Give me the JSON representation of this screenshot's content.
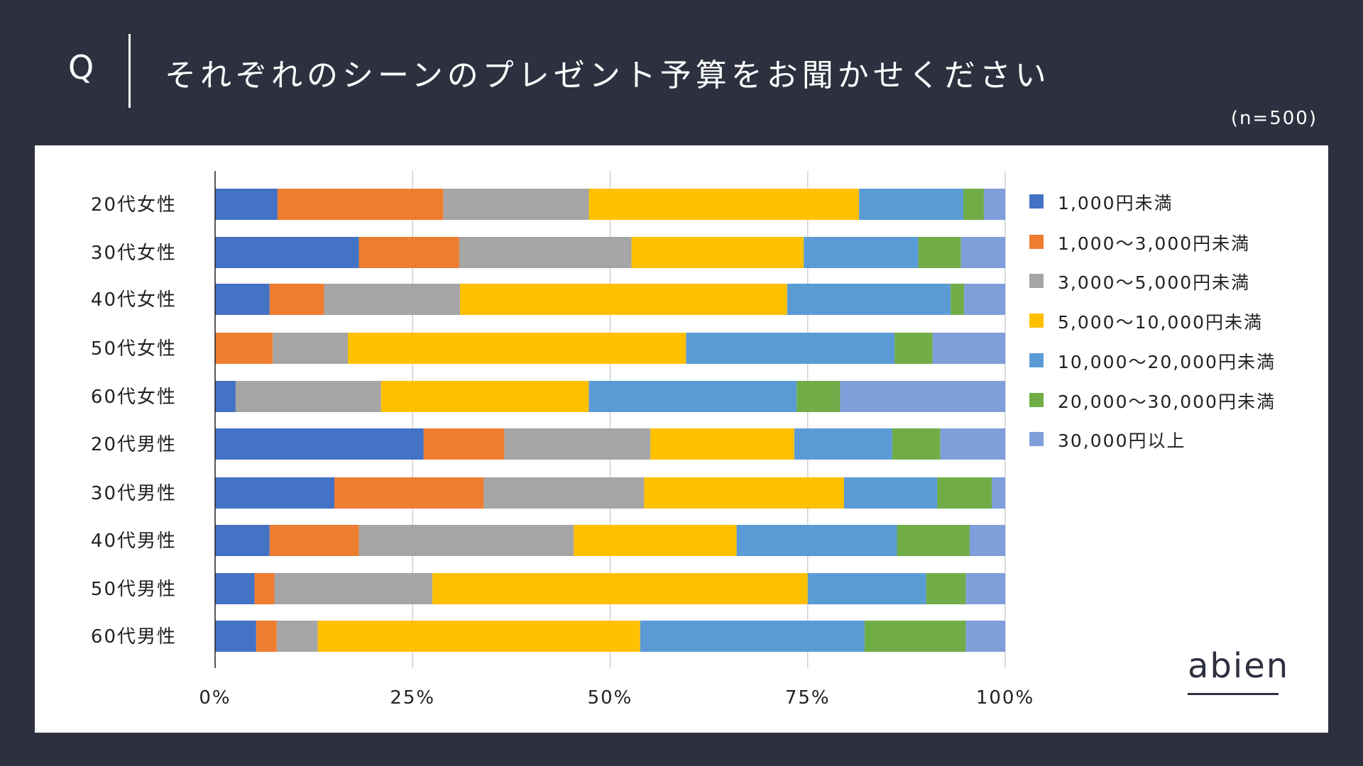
{
  "header": {
    "q_letter": "Q",
    "title": "それぞれのシーンのプレゼント予算をお聞かせください",
    "sample_size": "(n=500)"
  },
  "brand": {
    "logo_text": "abien"
  },
  "colors": {
    "background": "#2d303f",
    "panel": "#ffffff",
    "grid": "#d0d0d0",
    "axis": "#222222"
  },
  "chart_data": {
    "type": "bar",
    "orientation": "horizontal",
    "stacked": "percent",
    "title": "",
    "xlabel": "",
    "ylabel": "",
    "xlim": [
      0,
      100
    ],
    "x_ticks": [
      "0%",
      "25%",
      "50%",
      "75%",
      "100%"
    ],
    "grid": true,
    "legend_position": "right",
    "categories": [
      "20代女性",
      "30代女性",
      "40代女性",
      "50代女性",
      "60代女性",
      "20代男性",
      "30代男性",
      "40代男性",
      "50代男性",
      "60代男性"
    ],
    "series": [
      {
        "name": "1,000円未満",
        "color": "#4472c4",
        "values": [
          7.9,
          18.2,
          6.9,
          0,
          2.6,
          26.4,
          15.1,
          6.9,
          5.0,
          5.2
        ]
      },
      {
        "name": "1,000〜3,000円未満",
        "color": "#ed7d31",
        "values": [
          21.0,
          12.7,
          6.9,
          7.3,
          0,
          10.2,
          18.9,
          11.3,
          2.5,
          2.6
        ]
      },
      {
        "name": "3,000〜5,000円未満",
        "color": "#a5a5a5",
        "values": [
          18.4,
          21.8,
          17.2,
          9.5,
          18.4,
          18.5,
          20.3,
          27.2,
          20.0,
          5.2
        ]
      },
      {
        "name": "5,000〜10,000円未満",
        "color": "#ffc000",
        "values": [
          34.2,
          21.8,
          41.4,
          42.8,
          26.3,
          18.2,
          25.3,
          20.6,
          47.5,
          40.8
        ]
      },
      {
        "name": "10,000〜20,000円未満",
        "color": "#5b9bd5",
        "values": [
          13.2,
          14.5,
          20.7,
          26.4,
          26.3,
          12.4,
          11.8,
          20.3,
          15.0,
          28.4
        ]
      },
      {
        "name": "20,000〜30,000円未満",
        "color": "#70ad47",
        "values": [
          2.6,
          5.4,
          1.7,
          4.8,
          5.5,
          6.1,
          6.9,
          9.2,
          5.0,
          12.8
        ]
      },
      {
        "name": "30,000円以上",
        "color": "#7f9fdb",
        "values": [
          2.7,
          5.6,
          5.2,
          9.2,
          20.9,
          8.2,
          1.7,
          4.5,
          5.0,
          5.0
        ]
      }
    ]
  }
}
